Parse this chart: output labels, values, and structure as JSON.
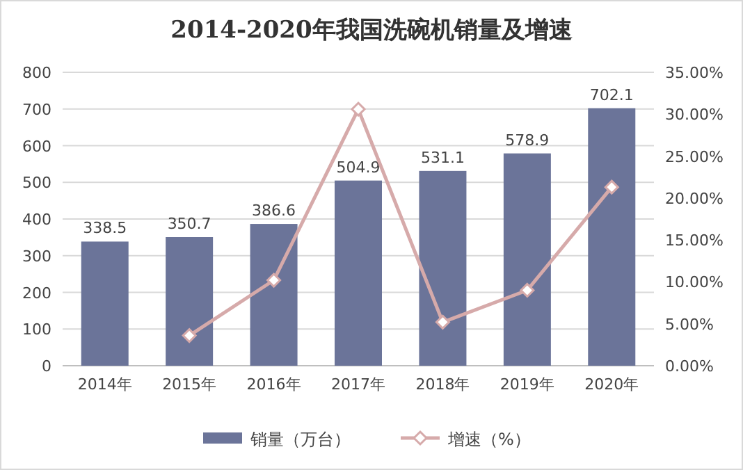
{
  "chart_data": {
    "type": "bar",
    "title": "2014-2020年我国洗碗机销量及增速",
    "categories": [
      "2014年",
      "2015年",
      "2016年",
      "2017年",
      "2018年",
      "2019年",
      "2020年"
    ],
    "series": [
      {
        "name": "销量（万台）",
        "color": "#6b7499",
        "values": [
          338.5,
          350.7,
          386.6,
          504.9,
          531.1,
          578.9,
          702.1
        ],
        "value_labels": [
          "338.5",
          "350.7",
          "386.6",
          "504.9",
          "531.1",
          "578.9",
          "702.1"
        ]
      },
      {
        "name": "增速（%）",
        "type": "line",
        "axis": "y2",
        "color": "#d6aaaa",
        "marker": "diamond",
        "values": [
          null,
          3.6,
          10.2,
          30.6,
          5.2,
          9.0,
          21.3
        ]
      }
    ],
    "ylim": [
      0,
      800
    ],
    "yticks": [
      0,
      100,
      200,
      300,
      400,
      500,
      600,
      700,
      800
    ],
    "y2lim": [
      0,
      35
    ],
    "y2ticks": [
      {
        "value": 0,
        "label": "0.00%"
      },
      {
        "value": 5,
        "label": "5.00%"
      },
      {
        "value": 10,
        "label": "10.00%"
      },
      {
        "value": 15,
        "label": "15.00%"
      },
      {
        "value": 20,
        "label": "20.00%"
      },
      {
        "value": 25,
        "label": "25.00%"
      },
      {
        "value": 30,
        "label": "30.00%"
      },
      {
        "value": 35,
        "label": "35.00%"
      }
    ],
    "grid": "y",
    "legend": "bottom"
  }
}
